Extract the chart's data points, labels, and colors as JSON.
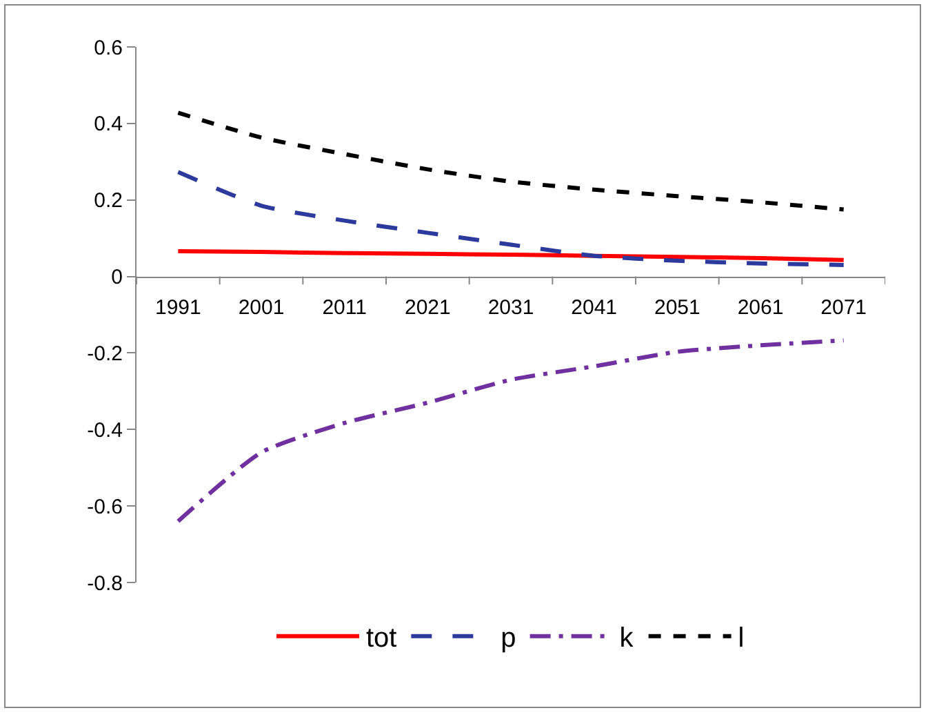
{
  "chart_data": {
    "type": "line",
    "categories": [
      "1991",
      "2001",
      "2011",
      "2021",
      "2031",
      "2041",
      "2051",
      "2061",
      "2071"
    ],
    "series": [
      {
        "name": "tot",
        "color": "#ff0000",
        "line_style": "solid",
        "values": [
          0.066,
          0.064,
          0.061,
          0.059,
          0.057,
          0.054,
          0.051,
          0.048,
          0.043
        ]
      },
      {
        "name": "p",
        "color": "#2b3a9c",
        "line_style": "dashed",
        "values": [
          0.273,
          0.185,
          0.146,
          0.114,
          0.083,
          0.054,
          0.041,
          0.034,
          0.03
        ]
      },
      {
        "name": "k",
        "color": "#7030a0",
        "line_style": "dashdot",
        "values": [
          -0.64,
          -0.46,
          -0.383,
          -0.33,
          -0.27,
          -0.235,
          -0.197,
          -0.18,
          -0.167
        ]
      },
      {
        "name": "l",
        "color": "#000000",
        "line_style": "dotted",
        "values": [
          0.428,
          0.363,
          0.32,
          0.28,
          0.248,
          0.227,
          0.21,
          0.194,
          0.175
        ]
      }
    ],
    "ylim": [
      -0.8,
      0.6
    ],
    "yticks": [
      -0.8,
      -0.6,
      -0.4,
      -0.2,
      0,
      0.2,
      0.4,
      0.6
    ],
    "grid": false,
    "legend": "bottom",
    "marker": "none"
  }
}
